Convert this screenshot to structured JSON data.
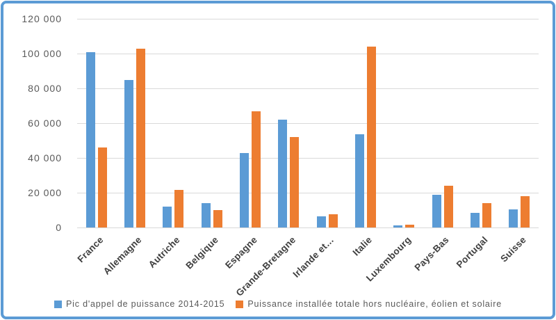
{
  "window": {
    "background": "#FFFFFF",
    "frame_border_color": "#5B9BD5"
  },
  "colors": {
    "series_blue": "#5B9BD5",
    "series_orange": "#ED7D31",
    "gridline": "#D9D9D9",
    "axis_text": "#595959",
    "category_text": "#3F3F3F"
  },
  "chart_data": {
    "type": "bar",
    "title": "",
    "xlabel": "",
    "ylabel": "",
    "categories": [
      "France",
      "Allemagne",
      "Autriche",
      "Belgique",
      "Espagne",
      "Grande-Bretagne",
      "Irlande et…",
      "Italie",
      "Luxembourg",
      "Pays-Bas",
      "Portugal",
      "Suisse"
    ],
    "series": [
      {
        "name": "Pic d'appel de puissance 2014-2015",
        "color": "#5B9BD5",
        "values": [
          101000,
          85000,
          12000,
          14000,
          43000,
          62000,
          6500,
          53500,
          1200,
          19000,
          8500,
          10500
        ]
      },
      {
        "name": "Puissance installée totale hors nucléaire, éolien et solaire",
        "color": "#ED7D31",
        "values": [
          46000,
          103000,
          21500,
          10000,
          67000,
          52000,
          7500,
          104000,
          1700,
          24000,
          14000,
          18000
        ]
      }
    ],
    "ylim": [
      0,
      120000
    ],
    "ytick_step": 20000,
    "ytick_labels": [
      "0",
      "20 000",
      "40 000",
      "60 000",
      "80 000",
      "100 000",
      "120 000"
    ],
    "grid": true,
    "legend_position": "bottom"
  }
}
